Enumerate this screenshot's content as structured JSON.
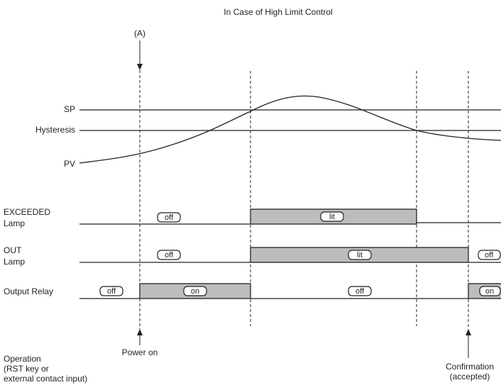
{
  "title": "In Case of High Limit Control",
  "marker": "(A)",
  "levels": {
    "sp": "SP",
    "hysteresis": "Hysteresis",
    "pv": "PV"
  },
  "signals": [
    {
      "label": [
        "EXCEEDED",
        "Lamp"
      ],
      "states": [
        "off",
        "lit"
      ]
    },
    {
      "label": [
        "OUT",
        "Lamp"
      ],
      "states": [
        "off",
        "lit",
        "off"
      ]
    },
    {
      "label": [
        "Output Relay"
      ],
      "states": [
        "off",
        "on",
        "off",
        "on"
      ]
    }
  ],
  "operation": [
    "Operation",
    "(RST key or",
    "external contact input)"
  ],
  "power_on": "Power on",
  "confirmation": [
    "Confirmation",
    "(accepted)"
  ]
}
